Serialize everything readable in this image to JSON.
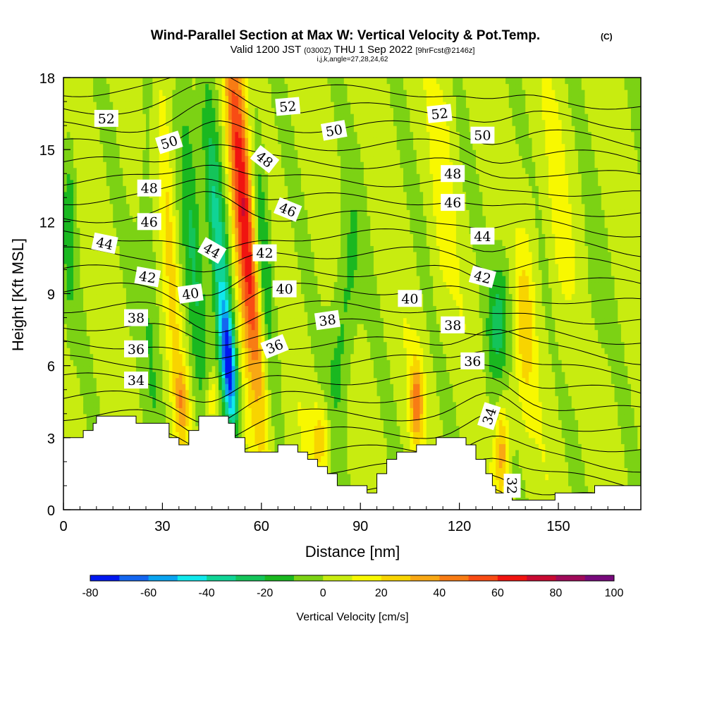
{
  "title": {
    "main": "Wind-Parallel Section at Max W: Vertical Velocity & Pot.Temp.",
    "main_units": "(C)",
    "valid_prefix": "Valid 1200 JST",
    "valid_utc": "(0300Z)",
    "valid_date": "THU 1 Sep 2022",
    "fcst": "[9hrFcst@2146z]",
    "indices": "i,j,k,angle=27,28,24,62"
  },
  "chart_data": {
    "type": "heatmap",
    "xlabel": "Distance [nm]",
    "ylabel": "Height [Kft MSL]",
    "xlim": [
      0,
      175
    ],
    "ylim": [
      0,
      18
    ],
    "x_ticks": [
      0,
      30,
      60,
      90,
      120,
      150
    ],
    "y_ticks": [
      0,
      3,
      6,
      9,
      12,
      15,
      18
    ],
    "colorbar": {
      "label": "Vertical Velocity [cm/s]",
      "tick_labels": [
        -80,
        -60,
        -40,
        -20,
        0,
        20,
        40,
        60,
        80,
        100
      ],
      "levels": [
        -80,
        -70,
        -60,
        -50,
        -40,
        -30,
        -20,
        -10,
        0,
        10,
        20,
        30,
        40,
        50,
        60,
        70,
        80,
        90,
        100
      ],
      "colors": [
        "#0018f0",
        "#1466f0",
        "#0aa4f0",
        "#10e8ec",
        "#10d496",
        "#14c45a",
        "#1ab820",
        "#7cd214",
        "#c8ec10",
        "#f8f800",
        "#f8d400",
        "#f8a814",
        "#f87c14",
        "#f84c14",
        "#f01410",
        "#c80a32",
        "#a00a5a",
        "#780a7c"
      ]
    },
    "terrain": [
      [
        0,
        3
      ],
      [
        6,
        3
      ],
      [
        6,
        3.3
      ],
      [
        9,
        3.3
      ],
      [
        9,
        3.6
      ],
      [
        10,
        3.6
      ],
      [
        10,
        3.9
      ],
      [
        22,
        3.9
      ],
      [
        22,
        3.6
      ],
      [
        32,
        3.6
      ],
      [
        32,
        3
      ],
      [
        35,
        3
      ],
      [
        35,
        2.7
      ],
      [
        38,
        2.7
      ],
      [
        38,
        3.3
      ],
      [
        41,
        3.3
      ],
      [
        41,
        3.9
      ],
      [
        50,
        3.9
      ],
      [
        50,
        3.6
      ],
      [
        52,
        3.6
      ],
      [
        52,
        3
      ],
      [
        55,
        3
      ],
      [
        55,
        2.4
      ],
      [
        65,
        2.4
      ],
      [
        65,
        2.7
      ],
      [
        71,
        2.7
      ],
      [
        71,
        2.4
      ],
      [
        74,
        2.4
      ],
      [
        74,
        2.1
      ],
      [
        77,
        2.1
      ],
      [
        77,
        1.8
      ],
      [
        80,
        1.8
      ],
      [
        80,
        1.5
      ],
      [
        83,
        1.5
      ],
      [
        83,
        1
      ],
      [
        92,
        1
      ],
      [
        92,
        0.7
      ],
      [
        95,
        0.7
      ],
      [
        95,
        1.5
      ],
      [
        98,
        1.5
      ],
      [
        98,
        2.1
      ],
      [
        101,
        2.1
      ],
      [
        101,
        2.4
      ],
      [
        107,
        2.4
      ],
      [
        107,
        2.7
      ],
      [
        113,
        2.7
      ],
      [
        113,
        3
      ],
      [
        122,
        3
      ],
      [
        122,
        2.7
      ],
      [
        125,
        2.7
      ],
      [
        125,
        2.1
      ],
      [
        128,
        2.1
      ],
      [
        128,
        1.5
      ],
      [
        130,
        1.5
      ],
      [
        130,
        1
      ],
      [
        131,
        1
      ],
      [
        131,
        0.7
      ],
      [
        136,
        0.7
      ],
      [
        136,
        0.4
      ],
      [
        149,
        0.4
      ],
      [
        149,
        0.7
      ],
      [
        161,
        0.7
      ],
      [
        161,
        1
      ],
      [
        175,
        1
      ]
    ],
    "theta_levels": [
      30,
      31,
      32,
      33,
      34,
      35,
      36,
      37,
      38,
      39,
      40,
      41,
      42,
      43,
      44,
      45,
      46,
      47,
      48,
      49,
      50,
      51,
      52,
      53
    ],
    "contour_labels": [
      {
        "text": "52",
        "x": 13,
        "y": 16.3,
        "rot": 0
      },
      {
        "text": "50",
        "x": 32,
        "y": 15.3,
        "rot": -18
      },
      {
        "text": "48",
        "x": 26,
        "y": 13.4,
        "rot": 0
      },
      {
        "text": "46",
        "x": 26,
        "y": 12.0,
        "rot": 0
      },
      {
        "text": "44",
        "x": 12.5,
        "y": 11.1,
        "rot": 12
      },
      {
        "text": "42",
        "x": 25.5,
        "y": 9.7,
        "rot": 10
      },
      {
        "text": "40",
        "x": 38.5,
        "y": 9.0,
        "rot": -8
      },
      {
        "text": "38",
        "x": 22,
        "y": 8.0,
        "rot": 0
      },
      {
        "text": "36",
        "x": 22,
        "y": 6.7,
        "rot": 0
      },
      {
        "text": "34",
        "x": 22,
        "y": 5.4,
        "rot": 0
      },
      {
        "text": "44",
        "x": 45,
        "y": 10.8,
        "rot": 30
      },
      {
        "text": "42",
        "x": 61,
        "y": 10.7,
        "rot": 0
      },
      {
        "text": "40",
        "x": 67,
        "y": 9.2,
        "rot": 0
      },
      {
        "text": "36",
        "x": 64,
        "y": 6.8,
        "rot": -22
      },
      {
        "text": "38",
        "x": 80,
        "y": 7.9,
        "rot": -8
      },
      {
        "text": "48",
        "x": 61,
        "y": 14.6,
        "rot": 38
      },
      {
        "text": "46",
        "x": 68,
        "y": 12.5,
        "rot": 22
      },
      {
        "text": "52",
        "x": 68,
        "y": 16.8,
        "rot": -5
      },
      {
        "text": "50",
        "x": 82,
        "y": 15.8,
        "rot": -10
      },
      {
        "text": "52",
        "x": 114,
        "y": 16.5,
        "rot": -6
      },
      {
        "text": "50",
        "x": 127,
        "y": 15.6,
        "rot": 0
      },
      {
        "text": "48",
        "x": 118,
        "y": 14.0,
        "rot": 0
      },
      {
        "text": "46",
        "x": 118,
        "y": 12.8,
        "rot": 0
      },
      {
        "text": "44",
        "x": 127,
        "y": 11.4,
        "rot": 0
      },
      {
        "text": "42",
        "x": 127,
        "y": 9.7,
        "rot": 15
      },
      {
        "text": "40",
        "x": 105,
        "y": 8.8,
        "rot": 0
      },
      {
        "text": "38",
        "x": 118,
        "y": 7.7,
        "rot": 0
      },
      {
        "text": "36",
        "x": 124,
        "y": 6.2,
        "rot": 0
      },
      {
        "text": "34",
        "x": 129,
        "y": 3.9,
        "rot": -72
      },
      {
        "text": "32",
        "x": 136,
        "y": 1.0,
        "rot": 90
      }
    ]
  }
}
